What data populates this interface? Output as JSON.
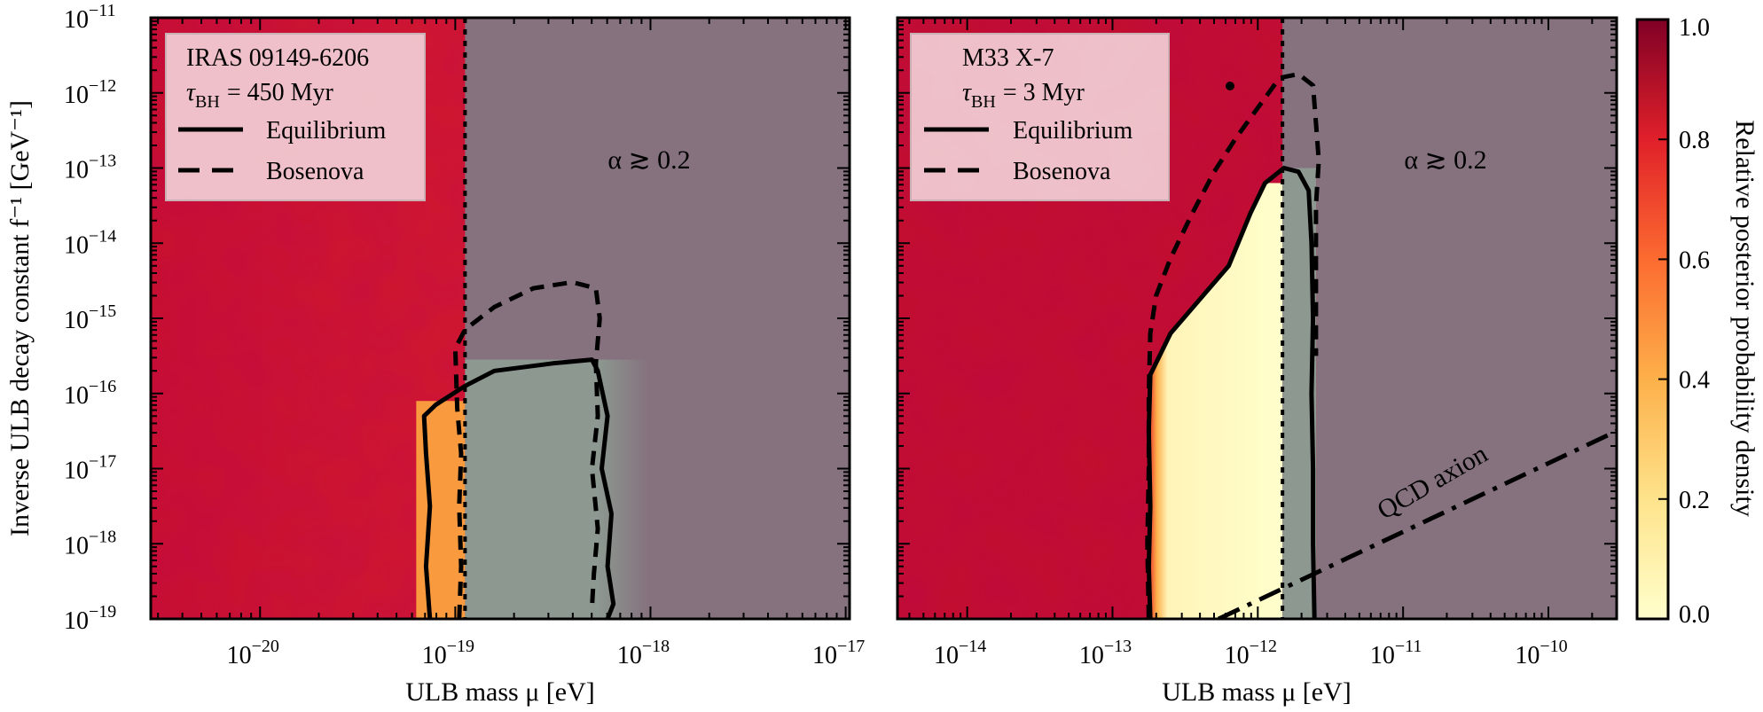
{
  "chart_data": [
    {
      "type": "heatmap",
      "panel": "left",
      "title": "",
      "legend": {
        "position": "top-left",
        "source": "IRAS 09149-6206",
        "tau_prefix": "τ",
        "tau_sub": "BH",
        "tau_value": "= 450 Myr",
        "entries": [
          {
            "label": "Equilibrium",
            "style": "solid"
          },
          {
            "label": "Bosenova",
            "style": "dashed"
          }
        ]
      },
      "annotation": "α ≳ 0.2",
      "xlabel": "ULB mass μ [eV]",
      "ylabel": "Inverse ULB decay constant f⁻¹ [GeV⁻¹]",
      "xscale": "log",
      "yscale": "log",
      "xlim_log10": [
        -20.56,
        -16.98
      ],
      "ylim_log10": [
        -19,
        -11
      ],
      "x_ticks": [
        {
          "exp": -20,
          "label": "10",
          "sup": "−20"
        },
        {
          "exp": -19,
          "label": "10",
          "sup": "−19"
        },
        {
          "exp": -18,
          "label": "10",
          "sup": "−18"
        },
        {
          "exp": -17,
          "label": "10",
          "sup": "−17"
        }
      ],
      "y_ticks": [
        {
          "exp": -11,
          "label": "10",
          "sup": "−11"
        },
        {
          "exp": -12,
          "label": "10",
          "sup": "−12"
        },
        {
          "exp": -13,
          "label": "10",
          "sup": "−13"
        },
        {
          "exp": -14,
          "label": "10",
          "sup": "−14"
        },
        {
          "exp": -15,
          "label": "10",
          "sup": "−15"
        },
        {
          "exp": -16,
          "label": "10",
          "sup": "−16"
        },
        {
          "exp": -17,
          "label": "10",
          "sup": "−17"
        },
        {
          "exp": -18,
          "label": "10",
          "sup": "−18"
        },
        {
          "exp": -19,
          "label": "10",
          "sup": "−19"
        }
      ],
      "alpha_bound_log10_mu": -18.95,
      "excluded_region": "mu above alpha bound (grey)",
      "contours": {
        "equilibrium": [
          [
            -19.13,
            -19
          ],
          [
            -19.15,
            -18.3
          ],
          [
            -19.13,
            -17.5
          ],
          [
            -19.15,
            -16.8
          ],
          [
            -19.16,
            -16.3
          ],
          [
            -19.1,
            -16.15
          ],
          [
            -18.95,
            -15.9
          ],
          [
            -18.8,
            -15.7
          ],
          [
            -18.5,
            -15.6
          ],
          [
            -18.3,
            -15.55
          ],
          [
            -18.27,
            -15.7
          ],
          [
            -18.22,
            -16.3
          ],
          [
            -18.25,
            -17.0
          ],
          [
            -18.2,
            -17.6
          ],
          [
            -18.22,
            -18.3
          ],
          [
            -18.19,
            -18.8
          ],
          [
            -18.22,
            -19
          ]
        ],
        "bosenova": [
          [
            -18.98,
            -19
          ],
          [
            -18.97,
            -18.3
          ],
          [
            -18.98,
            -17.5
          ],
          [
            -18.97,
            -16.8
          ],
          [
            -18.99,
            -16.2
          ],
          [
            -19.0,
            -15.4
          ],
          [
            -18.95,
            -15.15
          ],
          [
            -18.8,
            -14.85
          ],
          [
            -18.6,
            -14.6
          ],
          [
            -18.4,
            -14.52
          ],
          [
            -18.28,
            -14.6
          ],
          [
            -18.26,
            -15.0
          ],
          [
            -18.28,
            -15.6
          ],
          [
            -18.27,
            -16.3
          ],
          [
            -18.3,
            -17.0
          ],
          [
            -18.27,
            -17.8
          ],
          [
            -18.29,
            -18.4
          ],
          [
            -18.3,
            -18.85
          ]
        ]
      }
    },
    {
      "type": "heatmap",
      "panel": "right",
      "title": "",
      "legend": {
        "position": "top-left",
        "source": "M33 X-7",
        "tau_prefix": "τ",
        "tau_sub": "BH",
        "tau_value": "= 3 Myr",
        "entries": [
          {
            "label": "Equilibrium",
            "style": "solid"
          },
          {
            "label": "Bosenova",
            "style": "dashed"
          }
        ]
      },
      "annotation": "α ≳ 0.2",
      "line_label": "QCD axion",
      "xlabel": "ULB mass μ [eV]",
      "xscale": "log",
      "yscale": "log",
      "xlim_log10": [
        -14.48,
        -9.53
      ],
      "ylim_log10": [
        -19,
        -11
      ],
      "x_ticks": [
        {
          "exp": -14,
          "label": "10",
          "sup": "−14"
        },
        {
          "exp": -13,
          "label": "10",
          "sup": "−13"
        },
        {
          "exp": -12,
          "label": "10",
          "sup": "−12"
        },
        {
          "exp": -11,
          "label": "10",
          "sup": "−11"
        },
        {
          "exp": -10,
          "label": "10",
          "sup": "−10"
        }
      ],
      "alpha_bound_log10_mu": -11.83,
      "qcd_axion_line": [
        [
          -12.27,
          -19
        ],
        [
          -9.53,
          -16.5
        ]
      ],
      "contours": {
        "equilibrium": [
          [
            -12.74,
            -19
          ],
          [
            -12.75,
            -18.3
          ],
          [
            -12.74,
            -17.5
          ],
          [
            -12.75,
            -16.5
          ],
          [
            -12.74,
            -15.75
          ],
          [
            -12.6,
            -15.2
          ],
          [
            -12.4,
            -14.75
          ],
          [
            -12.2,
            -14.3
          ],
          [
            -12.05,
            -13.6
          ],
          [
            -11.95,
            -13.2
          ],
          [
            -11.82,
            -13.0
          ],
          [
            -11.72,
            -13.05
          ],
          [
            -11.65,
            -13.3
          ],
          [
            -11.63,
            -14.0
          ],
          [
            -11.62,
            -15.0
          ],
          [
            -11.63,
            -16.0
          ],
          [
            -11.62,
            -17.0
          ],
          [
            -11.62,
            -18.0
          ],
          [
            -11.61,
            -19
          ]
        ],
        "bosenova": [
          [
            -12.75,
            -19
          ],
          [
            -12.76,
            -18.0
          ],
          [
            -12.75,
            -17.0
          ],
          [
            -12.75,
            -16.0
          ],
          [
            -12.74,
            -15.2
          ],
          [
            -12.7,
            -14.7
          ],
          [
            -12.6,
            -14.2
          ],
          [
            -12.45,
            -13.6
          ],
          [
            -12.3,
            -13.05
          ],
          [
            -12.15,
            -12.6
          ],
          [
            -12.0,
            -12.2
          ],
          [
            -11.85,
            -11.8
          ],
          [
            -11.72,
            -11.75
          ],
          [
            -11.62,
            -11.9
          ],
          [
            -11.6,
            -12.4
          ],
          [
            -11.58,
            -12.9
          ],
          [
            -11.6,
            -13.5
          ],
          [
            -11.6,
            -14.5
          ],
          [
            -11.6,
            -15.5
          ]
        ]
      }
    }
  ],
  "colorbar": {
    "label": "Relative posterior probability density",
    "ticks": [
      "0.0",
      "0.2",
      "0.4",
      "0.6",
      "0.8",
      "1.0"
    ],
    "tick_values": [
      0.0,
      0.2,
      0.4,
      0.6,
      0.8,
      1.0
    ],
    "range": [
      0,
      1
    ],
    "colormap": "YlOrRd"
  },
  "colors": {
    "high_density": "#c8102e",
    "low_density": "#ffffcc",
    "excluded_overlay": "#85727e",
    "overlap_overlay": "#8c9890",
    "legend_bg": "#f2cfd6"
  }
}
